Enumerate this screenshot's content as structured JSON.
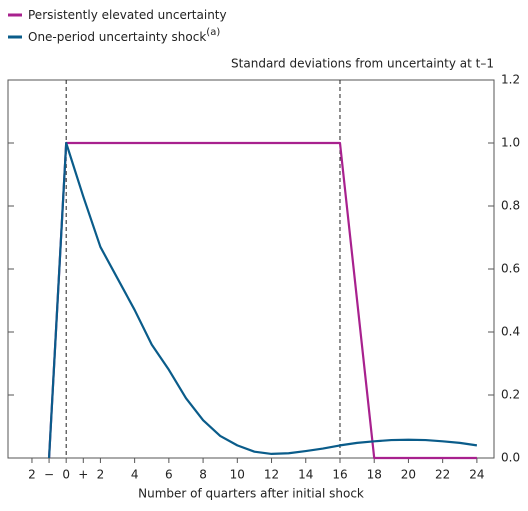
{
  "chart_data": {
    "type": "line",
    "y_axis_label": "Standard deviations from uncertainty at t–1",
    "x_axis_label": "Number of quarters after initial shock",
    "x": [
      -1,
      0,
      1,
      2,
      3,
      4,
      5,
      6,
      7,
      8,
      9,
      10,
      11,
      12,
      13,
      14,
      15,
      16,
      17,
      18,
      19,
      20,
      21,
      22,
      23,
      24
    ],
    "series": [
      {
        "name": "Persistently elevated uncertainty",
        "color": "#a8218e",
        "values": [
          0,
          1,
          1,
          1,
          1,
          1,
          1,
          1,
          1,
          1,
          1,
          1,
          1,
          1,
          1,
          1,
          1,
          1,
          0.5,
          0,
          0,
          0,
          0,
          0,
          0,
          0
        ]
      },
      {
        "name": "One-period uncertainty shock",
        "name_note": "(a)",
        "color": "#0a5c8a",
        "values": [
          0,
          1,
          0.83,
          0.67,
          0.57,
          0.47,
          0.36,
          0.28,
          0.19,
          0.12,
          0.07,
          0.04,
          0.02,
          0.013,
          0.015,
          0.022,
          0.03,
          0.04,
          0.048,
          0.053,
          0.057,
          0.058,
          0.057,
          0.053,
          0.048,
          0.04
        ]
      }
    ],
    "xlim": [
      -3.4,
      25
    ],
    "xticks": [
      {
        "value": -2,
        "label": "2"
      },
      {
        "value": -1,
        "label": "−"
      },
      0,
      {
        "value": 1,
        "label": "+"
      },
      2,
      4,
      6,
      8,
      10,
      12,
      14,
      16,
      18,
      20,
      22,
      24
    ],
    "ylim": [
      0,
      1.2
    ],
    "yticks": [
      {
        "value": 0,
        "label": "0.0"
      },
      0.2,
      0.4,
      0.6,
      0.8,
      {
        "value": 1,
        "label": "1.0"
      },
      1.2
    ],
    "vlines": [
      0,
      16
    ]
  }
}
